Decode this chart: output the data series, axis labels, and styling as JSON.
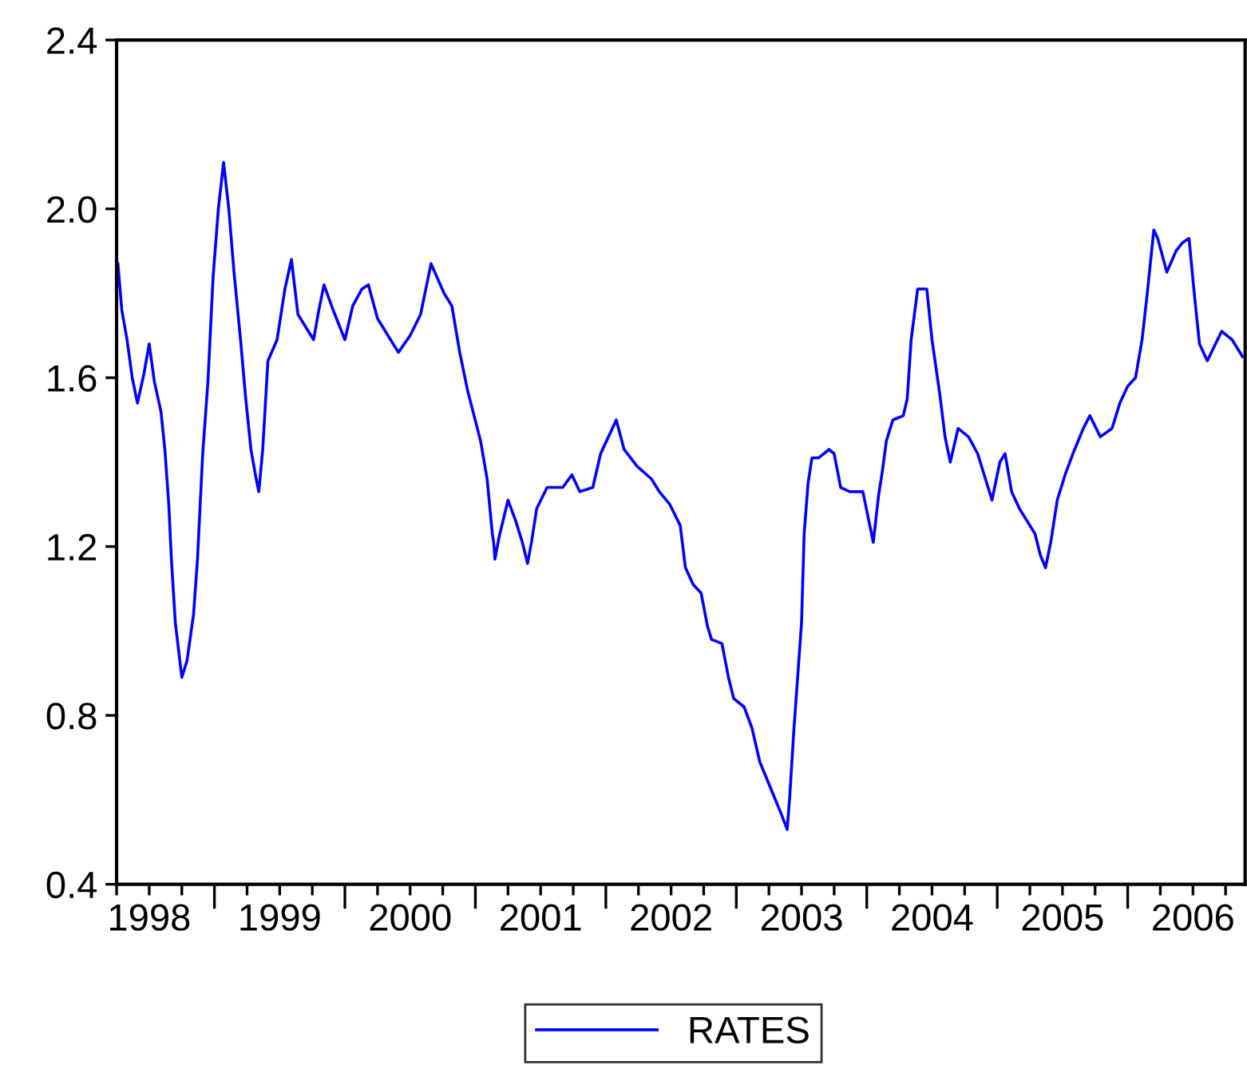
{
  "chart_data": {
    "type": "line",
    "xlim": [
      1998.25,
      2006.9
    ],
    "ylim": [
      0.4,
      2.4
    ],
    "yticks": [
      0.4,
      0.8,
      1.2,
      1.6,
      {
        "value": 2.0,
        "label": "2.0"
      },
      2.4
    ],
    "xticks": [
      {
        "value": 1998.25,
        "label": null
      },
      {
        "value": 1998.5,
        "label": "1998"
      },
      {
        "value": 1998.75,
        "label": null
      },
      {
        "value": 1999,
        "label": null
      },
      {
        "value": 1999.25,
        "label": null
      },
      {
        "value": 1999.5,
        "label": "1999"
      },
      {
        "value": 1999.75,
        "label": null
      },
      {
        "value": 2000,
        "label": null
      },
      {
        "value": 2000.25,
        "label": null
      },
      {
        "value": 2000.5,
        "label": "2000"
      },
      {
        "value": 2000.75,
        "label": null
      },
      {
        "value": 2001,
        "label": null
      },
      {
        "value": 2001.25,
        "label": null
      },
      {
        "value": 2001.5,
        "label": "2001"
      },
      {
        "value": 2001.75,
        "label": null
      },
      {
        "value": 2002,
        "label": null
      },
      {
        "value": 2002.25,
        "label": null
      },
      {
        "value": 2002.5,
        "label": "2002"
      },
      {
        "value": 2002.75,
        "label": null
      },
      {
        "value": 2003,
        "label": null
      },
      {
        "value": 2003.25,
        "label": null
      },
      {
        "value": 2003.5,
        "label": "2003"
      },
      {
        "value": 2003.75,
        "label": null
      },
      {
        "value": 2004,
        "label": null
      },
      {
        "value": 2004.25,
        "label": null
      },
      {
        "value": 2004.5,
        "label": "2004"
      },
      {
        "value": 2004.75,
        "label": null
      },
      {
        "value": 2005,
        "label": null
      },
      {
        "value": 2005.25,
        "label": null
      },
      {
        "value": 2005.5,
        "label": "2005"
      },
      {
        "value": 2005.75,
        "label": null
      },
      {
        "value": 2006,
        "label": null
      },
      {
        "value": 2006.25,
        "label": null
      },
      {
        "value": 2006.5,
        "label": "2006"
      },
      {
        "value": 2006.75,
        "label": null
      }
    ],
    "grid": false,
    "legend": "bottom",
    "marker": "none",
    "line_style": "solid",
    "series": [
      {
        "name": "RATES",
        "color": "#0000ff",
        "x": [
          1998.26,
          1998.29,
          1998.33,
          1998.37,
          1998.41,
          1998.46,
          1998.5,
          1998.54,
          1998.59,
          1998.62,
          1998.65,
          1998.67,
          1998.7,
          1998.75,
          1998.79,
          1998.84,
          1998.87,
          1998.91,
          1998.95,
          1998.99,
          1999.03,
          1999.07,
          1999.11,
          1999.15,
          1999.2,
          1999.24,
          1999.28,
          1999.32,
          1999.34,
          1999.37,
          1999.41,
          1999.48,
          1999.54,
          1999.59,
          1999.64,
          1999.72,
          1999.76,
          1999.8,
          1999.84,
          1999.91,
          2000.0,
          2000.06,
          2000.13,
          2000.18,
          2000.25,
          2000.33,
          2000.41,
          2000.5,
          2000.58,
          2000.66,
          2000.76,
          2000.82,
          2000.88,
          2000.94,
          2000.99,
          2001.04,
          2001.09,
          2001.13,
          2001.14,
          2001.15,
          2001.18,
          2001.25,
          2001.31,
          2001.36,
          2001.4,
          2001.43,
          2001.47,
          2001.55,
          2001.67,
          2001.74,
          2001.8,
          2001.9,
          2001.96,
          2002.08,
          2002.14,
          2002.24,
          2002.35,
          2002.41,
          2002.49,
          2002.57,
          2002.61,
          2002.67,
          2002.73,
          2002.78,
          2002.81,
          2002.89,
          2002.94,
          2002.98,
          2003.06,
          2003.12,
          2003.18,
          2003.26,
          2003.34,
          2003.39,
          2003.41,
          2003.44,
          2003.47,
          2003.5,
          2003.52,
          2003.55,
          2003.58,
          2003.63,
          2003.71,
          2003.75,
          2003.8,
          2003.87,
          2003.95,
          2003.97,
          2004.01,
          2004.05,
          2004.09,
          2004.12,
          2004.15,
          2004.2,
          2004.28,
          2004.31,
          2004.34,
          2004.39,
          2004.46,
          2004.5,
          2004.56,
          2004.6,
          2004.64,
          2004.7,
          2004.78,
          2004.85,
          2004.91,
          2004.96,
          2005.02,
          2005.06,
          2005.11,
          2005.17,
          2005.23,
          2005.29,
          2005.33,
          2005.37,
          2005.41,
          2005.46,
          2005.52,
          2005.58,
          2005.66,
          2005.71,
          2005.79,
          2005.88,
          2005.94,
          2006.0,
          2006.06,
          2006.11,
          2006.15,
          2006.2,
          2006.23,
          2006.3,
          2006.37,
          2006.42,
          2006.47,
          2006.51,
          2006.55,
          2006.61,
          2006.72,
          2006.8,
          2006.88
        ],
        "values": [
          1.87,
          1.76,
          1.69,
          1.6,
          1.54,
          1.61,
          1.68,
          1.59,
          1.52,
          1.43,
          1.3,
          1.17,
          1.02,
          0.89,
          0.93,
          1.04,
          1.17,
          1.42,
          1.59,
          1.84,
          2.0,
          2.11,
          2.0,
          1.85,
          1.69,
          1.55,
          1.43,
          1.36,
          1.33,
          1.43,
          1.64,
          1.69,
          1.81,
          1.88,
          1.75,
          1.71,
          1.69,
          1.76,
          1.82,
          1.76,
          1.69,
          1.77,
          1.81,
          1.82,
          1.74,
          1.7,
          1.66,
          1.7,
          1.75,
          1.87,
          1.8,
          1.77,
          1.66,
          1.57,
          1.51,
          1.45,
          1.36,
          1.23,
          1.21,
          1.17,
          1.22,
          1.31,
          1.26,
          1.21,
          1.16,
          1.21,
          1.29,
          1.34,
          1.34,
          1.37,
          1.33,
          1.34,
          1.42,
          1.5,
          1.43,
          1.39,
          1.36,
          1.33,
          1.3,
          1.25,
          1.15,
          1.11,
          1.09,
          1.01,
          0.98,
          0.97,
          0.89,
          0.84,
          0.82,
          0.77,
          0.69,
          0.63,
          0.57,
          0.53,
          0.61,
          0.76,
          0.89,
          1.02,
          1.23,
          1.35,
          1.41,
          1.41,
          1.43,
          1.42,
          1.34,
          1.33,
          1.33,
          1.33,
          1.27,
          1.21,
          1.32,
          1.38,
          1.45,
          1.5,
          1.51,
          1.55,
          1.69,
          1.81,
          1.81,
          1.69,
          1.56,
          1.46,
          1.4,
          1.48,
          1.46,
          1.42,
          1.36,
          1.31,
          1.4,
          1.42,
          1.33,
          1.29,
          1.26,
          1.23,
          1.18,
          1.15,
          1.21,
          1.31,
          1.37,
          1.42,
          1.48,
          1.51,
          1.46,
          1.48,
          1.54,
          1.58,
          1.6,
          1.69,
          1.8,
          1.95,
          1.93,
          1.85,
          1.9,
          1.92,
          1.93,
          1.8,
          1.68,
          1.64,
          1.71,
          1.69,
          1.65
        ]
      }
    ]
  }
}
